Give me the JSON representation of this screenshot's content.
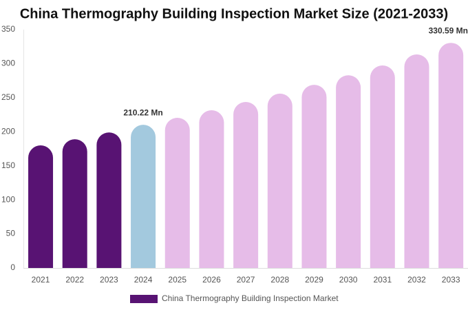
{
  "chart_data": {
    "type": "bar",
    "title": "China Thermography Building Inspection Market Size (2021-2033)",
    "categories": [
      "2021",
      "2022",
      "2023",
      "2024",
      "2025",
      "2026",
      "2027",
      "2028",
      "2029",
      "2030",
      "2031",
      "2032",
      "2033"
    ],
    "series": [
      {
        "name": "China Thermography Building Inspection Market",
        "color": "#581373",
        "colors": [
          "#581373",
          "#581373",
          "#581373",
          "#a3c9de",
          "#e6bce8",
          "#e6bce8",
          "#e6bce8",
          "#e6bce8",
          "#e6bce8",
          "#e6bce8",
          "#e6bce8",
          "#e6bce8",
          "#e6bce8"
        ],
        "values": [
          180,
          189,
          199,
          210.22,
          220.5,
          231.6,
          243.8,
          256,
          269,
          283,
          297.4,
          313.6,
          330.59
        ],
        "value_labels": [
          null,
          null,
          null,
          "210.22 Mn",
          null,
          null,
          null,
          null,
          null,
          null,
          null,
          null,
          "330.59 Mn"
        ]
      }
    ],
    "ylim": [
      0,
      350
    ],
    "yticks": [
      0,
      50,
      100,
      150,
      200,
      250,
      300,
      350
    ],
    "grid": false
  }
}
